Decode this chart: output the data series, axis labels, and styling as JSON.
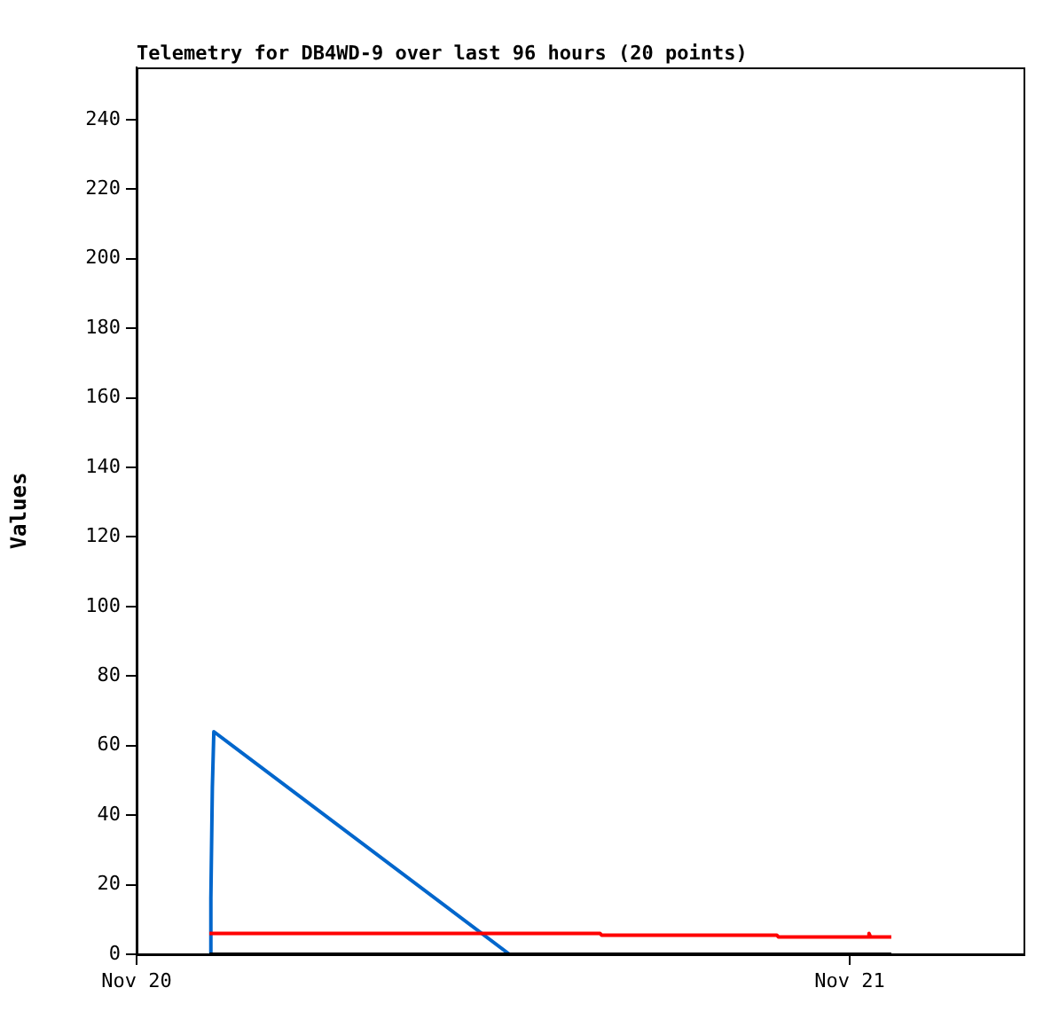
{
  "chart_data": {
    "type": "line",
    "title": "Telemetry for DB4WD-9 over last 96 hours (20 points)",
    "ylabel": "Values",
    "xlim": [
      "--11-20T00:00",
      "--11-21T05:51"
    ],
    "xticks": [
      {
        "value": "--11-20",
        "label": "Nov 20"
      },
      {
        "value": "--11-21",
        "label": "Nov 21"
      }
    ],
    "ylim": [
      0,
      255
    ],
    "yticks": [
      0,
      20,
      40,
      60,
      80,
      100,
      120,
      140,
      160,
      180,
      200,
      220,
      240
    ],
    "grid": false,
    "legend": false,
    "marker": "none",
    "line_style": "solid",
    "series": [
      {
        "color": "#000000",
        "x": [
          "--11-20T02:27",
          "--11-21T01:24"
        ],
        "values": [
          0,
          0
        ]
      },
      {
        "color": "#ff0000",
        "x": [
          "--11-20T02:27",
          "--11-20T15:36",
          "--11-20T15:39",
          "--11-20T21:33",
          "--11-20T21:36",
          "--11-21T00:36",
          "--11-21T00:39",
          "--11-21T00:42",
          "--11-21T01:24"
        ],
        "values": [
          6,
          6,
          5.5,
          5.5,
          5,
          5,
          6,
          5,
          5
        ]
      },
      {
        "color": "#0066cc",
        "x": [
          "--11-20T02:27",
          "--11-20T02:30",
          "--11-20T02:33",
          "--11-20T02:36",
          "--11-20T12:33"
        ],
        "values": [
          0,
          16,
          48,
          64,
          0
        ]
      }
    ]
  }
}
